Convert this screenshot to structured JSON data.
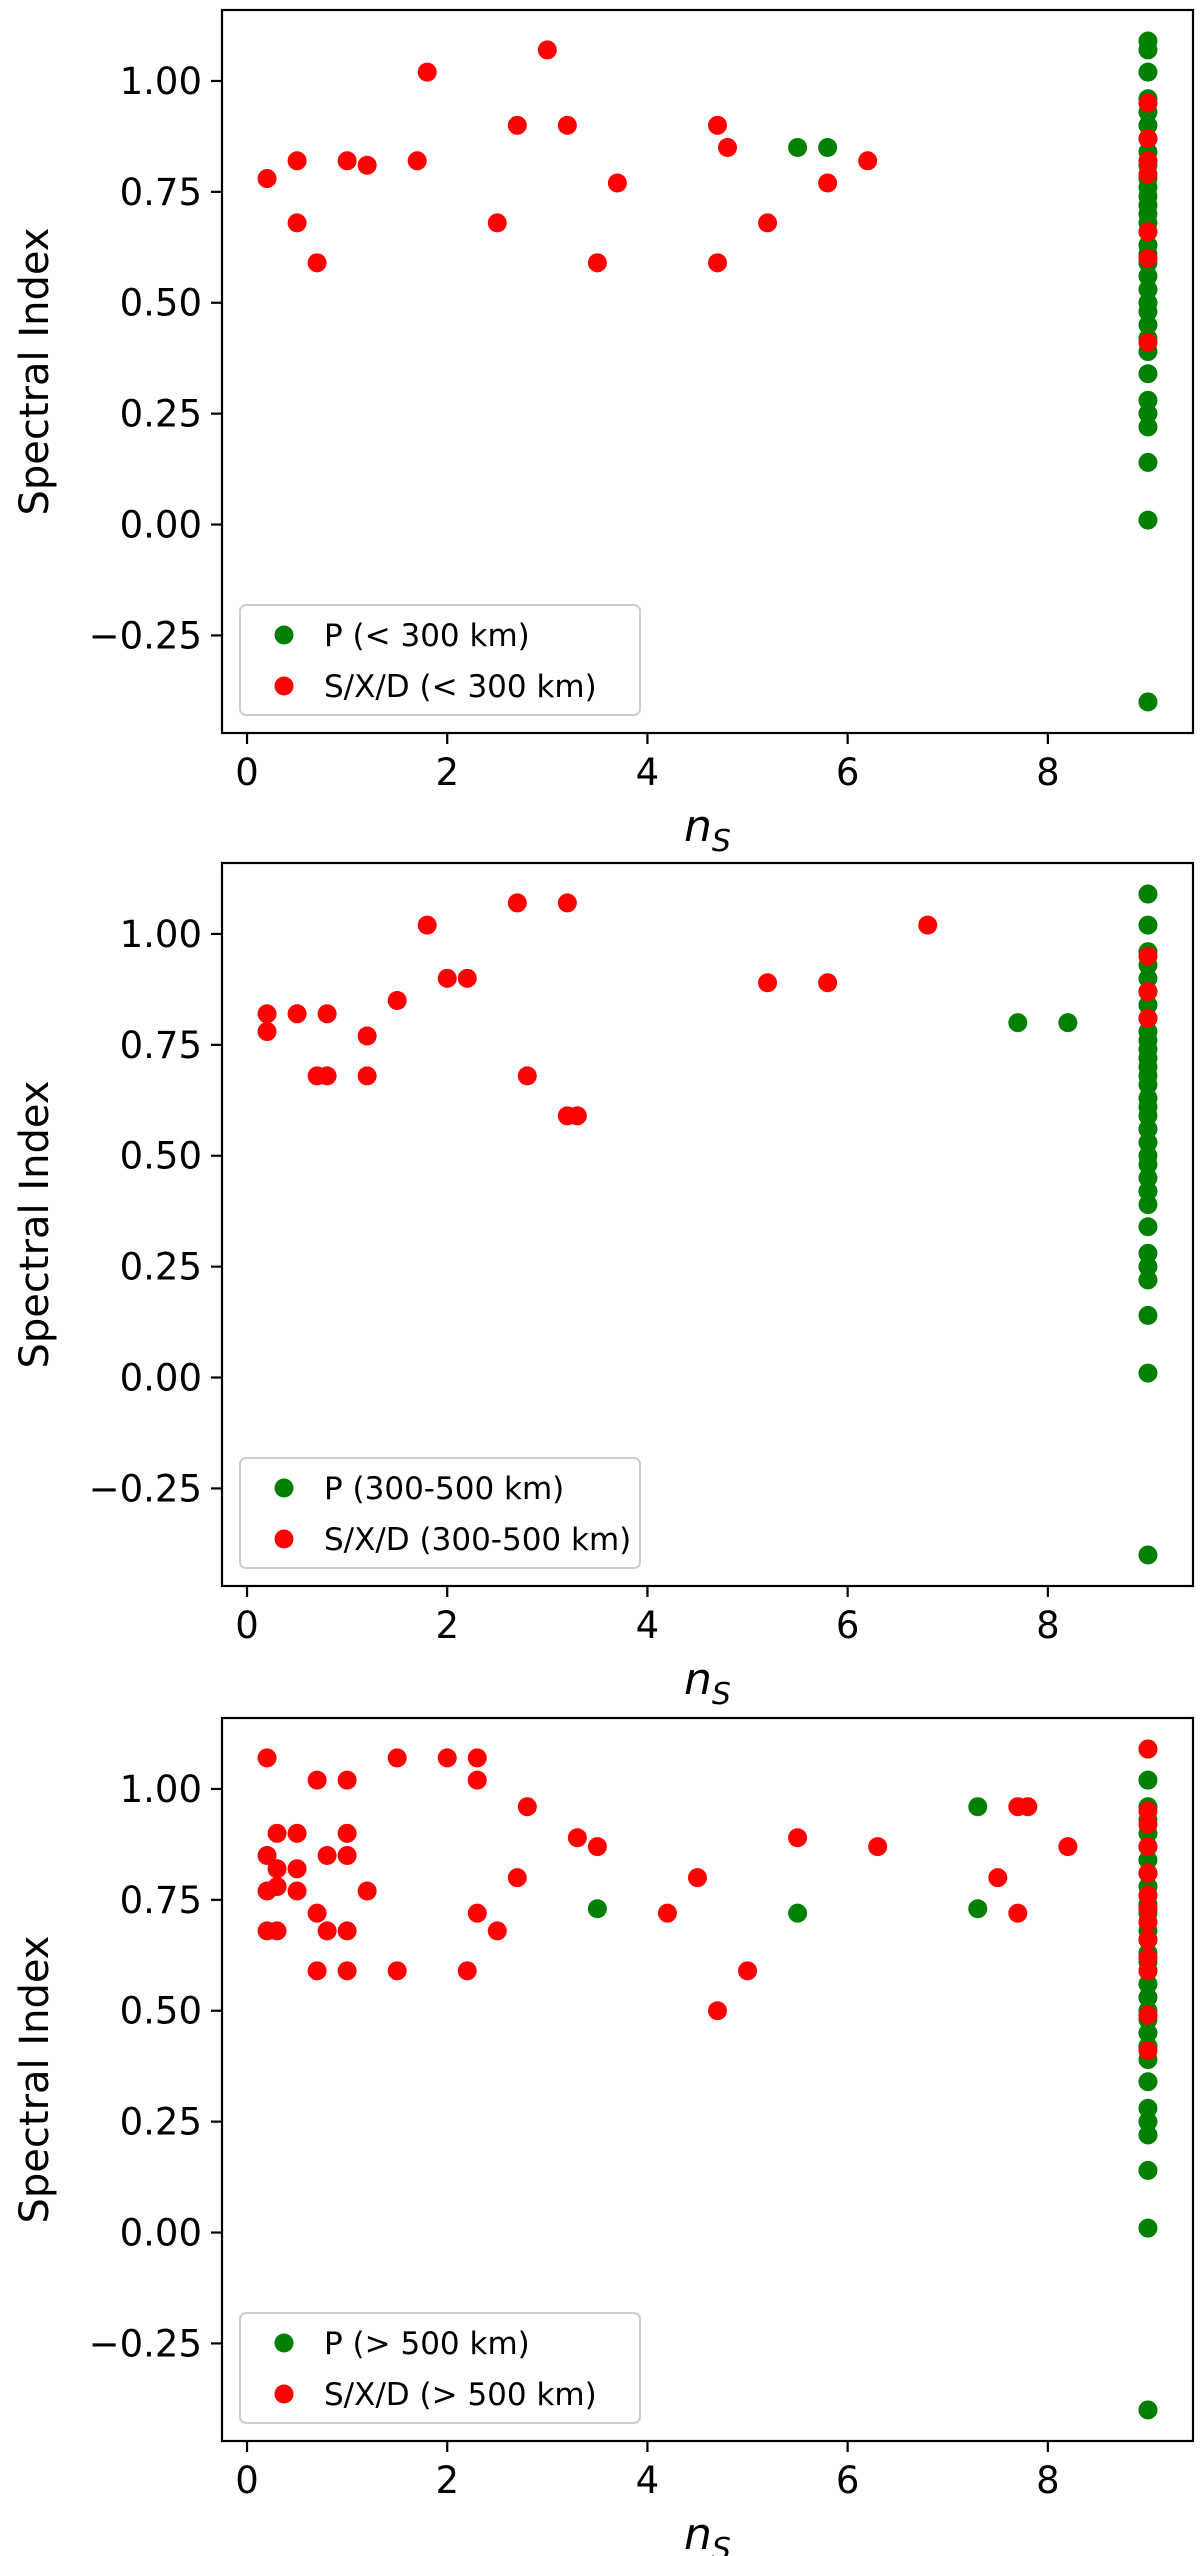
{
  "colors": {
    "p_series": "#008000",
    "sxd_series": "#ff0000"
  },
  "chart_data": [
    {
      "type": "scatter",
      "title": "",
      "xlabel": "n_S",
      "xlabel_main": "n",
      "xlabel_sub": "S",
      "ylabel": "Spectral Index",
      "xlim": [
        -0.25,
        9.45
      ],
      "ylim": [
        -0.47,
        1.16
      ],
      "xticks": [
        0,
        2,
        4,
        6,
        8
      ],
      "xtick_labels": [
        "0",
        "2",
        "4",
        "6",
        "8"
      ],
      "yticks": [
        -0.25,
        0,
        0.25,
        0.5,
        0.75,
        1.0
      ],
      "ytick_labels": [
        "−0.25",
        "0.00",
        "0.25",
        "0.50",
        "0.75",
        "1.00"
      ],
      "legend_position": "lower-left",
      "series": [
        {
          "name": "P (< 300 km)",
          "color": "#008000",
          "points": [
            [
              5.5,
              0.85
            ],
            [
              5.8,
              0.85
            ],
            [
              9,
              1.09
            ],
            [
              9,
              1.07
            ],
            [
              9,
              1.02
            ],
            [
              9,
              0.96
            ],
            [
              9,
              0.93
            ],
            [
              9,
              0.9
            ],
            [
              9,
              0.87
            ],
            [
              9,
              0.84
            ],
            [
              9,
              0.81
            ],
            [
              9,
              0.78
            ],
            [
              9,
              0.76
            ],
            [
              9,
              0.74
            ],
            [
              9,
              0.72
            ],
            [
              9,
              0.7
            ],
            [
              9,
              0.68
            ],
            [
              9,
              0.66
            ],
            [
              9,
              0.63
            ],
            [
              9,
              0.61
            ],
            [
              9,
              0.59
            ],
            [
              9,
              0.56
            ],
            [
              9,
              0.53
            ],
            [
              9,
              0.5
            ],
            [
              9,
              0.48
            ],
            [
              9,
              0.45
            ],
            [
              9,
              0.42
            ],
            [
              9,
              0.39
            ],
            [
              9,
              0.34
            ],
            [
              9,
              0.28
            ],
            [
              9,
              0.25
            ],
            [
              9,
              0.22
            ],
            [
              9,
              0.14
            ],
            [
              9,
              0.01
            ],
            [
              9,
              -0.4
            ]
          ]
        },
        {
          "name": "S/X/D (< 300 km)",
          "color": "#ff0000",
          "points": [
            [
              0.2,
              0.78
            ],
            [
              0.5,
              0.82
            ],
            [
              0.5,
              0.68
            ],
            [
              0.7,
              0.59
            ],
            [
              1.0,
              0.82
            ],
            [
              1.2,
              0.81
            ],
            [
              1.7,
              0.82
            ],
            [
              1.8,
              1.02
            ],
            [
              2.5,
              0.68
            ],
            [
              2.7,
              0.9
            ],
            [
              3.0,
              1.07
            ],
            [
              3.2,
              0.9
            ],
            [
              3.5,
              0.59
            ],
            [
              3.7,
              0.77
            ],
            [
              4.7,
              0.9
            ],
            [
              4.8,
              0.85
            ],
            [
              4.7,
              0.59
            ],
            [
              5.2,
              0.68
            ],
            [
              5.8,
              0.77
            ],
            [
              6.2,
              0.82
            ],
            [
              9,
              0.95
            ],
            [
              9,
              0.87
            ],
            [
              9,
              0.82
            ],
            [
              9,
              0.79
            ],
            [
              9,
              0.66
            ],
            [
              9,
              0.6
            ],
            [
              9,
              0.41
            ]
          ]
        }
      ]
    },
    {
      "type": "scatter",
      "title": "",
      "xlabel": "n_S",
      "xlabel_main": "n",
      "xlabel_sub": "S",
      "ylabel": "Spectral Index",
      "xlim": [
        -0.25,
        9.45
      ],
      "ylim": [
        -0.47,
        1.16
      ],
      "xticks": [
        0,
        2,
        4,
        6,
        8
      ],
      "xtick_labels": [
        "0",
        "2",
        "4",
        "6",
        "8"
      ],
      "yticks": [
        -0.25,
        0,
        0.25,
        0.5,
        0.75,
        1.0
      ],
      "ytick_labels": [
        "−0.25",
        "0.00",
        "0.25",
        "0.50",
        "0.75",
        "1.00"
      ],
      "legend_position": "lower-left",
      "series": [
        {
          "name": "P (300-500 km)",
          "color": "#008000",
          "points": [
            [
              7.7,
              0.8
            ],
            [
              8.2,
              0.8
            ],
            [
              9,
              1.09
            ],
            [
              9,
              1.02
            ],
            [
              9,
              0.96
            ],
            [
              9,
              0.93
            ],
            [
              9,
              0.9
            ],
            [
              9,
              0.87
            ],
            [
              9,
              0.84
            ],
            [
              9,
              0.81
            ],
            [
              9,
              0.78
            ],
            [
              9,
              0.76
            ],
            [
              9,
              0.74
            ],
            [
              9,
              0.72
            ],
            [
              9,
              0.7
            ],
            [
              9,
              0.68
            ],
            [
              9,
              0.66
            ],
            [
              9,
              0.63
            ],
            [
              9,
              0.61
            ],
            [
              9,
              0.59
            ],
            [
              9,
              0.56
            ],
            [
              9,
              0.53
            ],
            [
              9,
              0.5
            ],
            [
              9,
              0.48
            ],
            [
              9,
              0.45
            ],
            [
              9,
              0.42
            ],
            [
              9,
              0.39
            ],
            [
              9,
              0.34
            ],
            [
              9,
              0.28
            ],
            [
              9,
              0.25
            ],
            [
              9,
              0.22
            ],
            [
              9,
              0.14
            ],
            [
              9,
              0.01
            ],
            [
              9,
              -0.4
            ]
          ]
        },
        {
          "name": "S/X/D (300-500 km)",
          "color": "#ff0000",
          "points": [
            [
              0.2,
              0.82
            ],
            [
              0.2,
              0.78
            ],
            [
              0.5,
              0.82
            ],
            [
              0.7,
              0.68
            ],
            [
              0.8,
              0.82
            ],
            [
              0.8,
              0.68
            ],
            [
              1.2,
              0.77
            ],
            [
              1.2,
              0.68
            ],
            [
              1.5,
              0.85
            ],
            [
              1.8,
              1.02
            ],
            [
              2.0,
              0.9
            ],
            [
              2.2,
              0.9
            ],
            [
              2.7,
              1.07
            ],
            [
              2.8,
              0.68
            ],
            [
              3.2,
              1.07
            ],
            [
              3.2,
              0.59
            ],
            [
              3.3,
              0.59
            ],
            [
              5.2,
              0.89
            ],
            [
              5.8,
              0.89
            ],
            [
              6.8,
              1.02
            ],
            [
              9,
              0.95
            ],
            [
              9,
              0.87
            ],
            [
              9,
              0.81
            ]
          ]
        }
      ]
    },
    {
      "type": "scatter",
      "title": "",
      "xlabel": "n_S",
      "xlabel_main": "n",
      "xlabel_sub": "S",
      "ylabel": "Spectral Index",
      "xlim": [
        -0.25,
        9.45
      ],
      "ylim": [
        -0.47,
        1.16
      ],
      "xticks": [
        0,
        2,
        4,
        6,
        8
      ],
      "xtick_labels": [
        "0",
        "2",
        "4",
        "6",
        "8"
      ],
      "yticks": [
        -0.25,
        0,
        0.25,
        0.5,
        0.75,
        1.0
      ],
      "ytick_labels": [
        "−0.25",
        "0.00",
        "0.25",
        "0.50",
        "0.75",
        "1.00"
      ],
      "legend_position": "lower-left",
      "series": [
        {
          "name": "P (> 500 km)",
          "color": "#008000",
          "points": [
            [
              3.5,
              0.73
            ],
            [
              5.5,
              0.72
            ],
            [
              7.3,
              0.96
            ],
            [
              7.3,
              0.73
            ],
            [
              9,
              1.09
            ],
            [
              9,
              1.02
            ],
            [
              9,
              0.96
            ],
            [
              9,
              0.93
            ],
            [
              9,
              0.9
            ],
            [
              9,
              0.87
            ],
            [
              9,
              0.84
            ],
            [
              9,
              0.81
            ],
            [
              9,
              0.78
            ],
            [
              9,
              0.76
            ],
            [
              9,
              0.74
            ],
            [
              9,
              0.72
            ],
            [
              9,
              0.7
            ],
            [
              9,
              0.68
            ],
            [
              9,
              0.66
            ],
            [
              9,
              0.63
            ],
            [
              9,
              0.61
            ],
            [
              9,
              0.59
            ],
            [
              9,
              0.56
            ],
            [
              9,
              0.53
            ],
            [
              9,
              0.5
            ],
            [
              9,
              0.48
            ],
            [
              9,
              0.45
            ],
            [
              9,
              0.42
            ],
            [
              9,
              0.39
            ],
            [
              9,
              0.34
            ],
            [
              9,
              0.28
            ],
            [
              9,
              0.25
            ],
            [
              9,
              0.22
            ],
            [
              9,
              0.14
            ],
            [
              9,
              0.01
            ],
            [
              9,
              -0.4
            ]
          ]
        },
        {
          "name": "S/X/D (> 500 km)",
          "color": "#ff0000",
          "points": [
            [
              0.2,
              1.07
            ],
            [
              0.2,
              0.85
            ],
            [
              0.2,
              0.77
            ],
            [
              0.2,
              0.68
            ],
            [
              0.3,
              0.9
            ],
            [
              0.3,
              0.82
            ],
            [
              0.3,
              0.78
            ],
            [
              0.3,
              0.68
            ],
            [
              0.5,
              0.9
            ],
            [
              0.5,
              0.82
            ],
            [
              0.5,
              0.77
            ],
            [
              0.7,
              1.02
            ],
            [
              0.7,
              0.72
            ],
            [
              0.7,
              0.59
            ],
            [
              0.8,
              0.85
            ],
            [
              0.8,
              0.68
            ],
            [
              1.0,
              1.02
            ],
            [
              1.0,
              0.9
            ],
            [
              1.0,
              0.85
            ],
            [
              1.0,
              0.68
            ],
            [
              1.0,
              0.59
            ],
            [
              1.2,
              0.77
            ],
            [
              1.5,
              1.07
            ],
            [
              1.5,
              0.59
            ],
            [
              2.0,
              1.07
            ],
            [
              2.2,
              0.59
            ],
            [
              2.3,
              1.07
            ],
            [
              2.3,
              1.02
            ],
            [
              2.3,
              0.72
            ],
            [
              2.5,
              0.68
            ],
            [
              2.7,
              0.8
            ],
            [
              2.8,
              0.96
            ],
            [
              3.3,
              0.89
            ],
            [
              3.5,
              0.87
            ],
            [
              4.2,
              0.72
            ],
            [
              4.5,
              0.8
            ],
            [
              4.7,
              0.5
            ],
            [
              5.0,
              0.59
            ],
            [
              5.5,
              0.89
            ],
            [
              6.3,
              0.87
            ],
            [
              7.5,
              0.8
            ],
            [
              7.7,
              0.96
            ],
            [
              7.7,
              0.72
            ],
            [
              7.8,
              0.96
            ],
            [
              8.2,
              0.87
            ],
            [
              9,
              1.09
            ],
            [
              9,
              0.95
            ],
            [
              9,
              0.92
            ],
            [
              9,
              0.87
            ],
            [
              9,
              0.81
            ],
            [
              9,
              0.76
            ],
            [
              9,
              0.73
            ],
            [
              9,
              0.7
            ],
            [
              9,
              0.66
            ],
            [
              9,
              0.62
            ],
            [
              9,
              0.59
            ],
            [
              9,
              0.49
            ],
            [
              9,
              0.41
            ]
          ]
        }
      ]
    }
  ]
}
